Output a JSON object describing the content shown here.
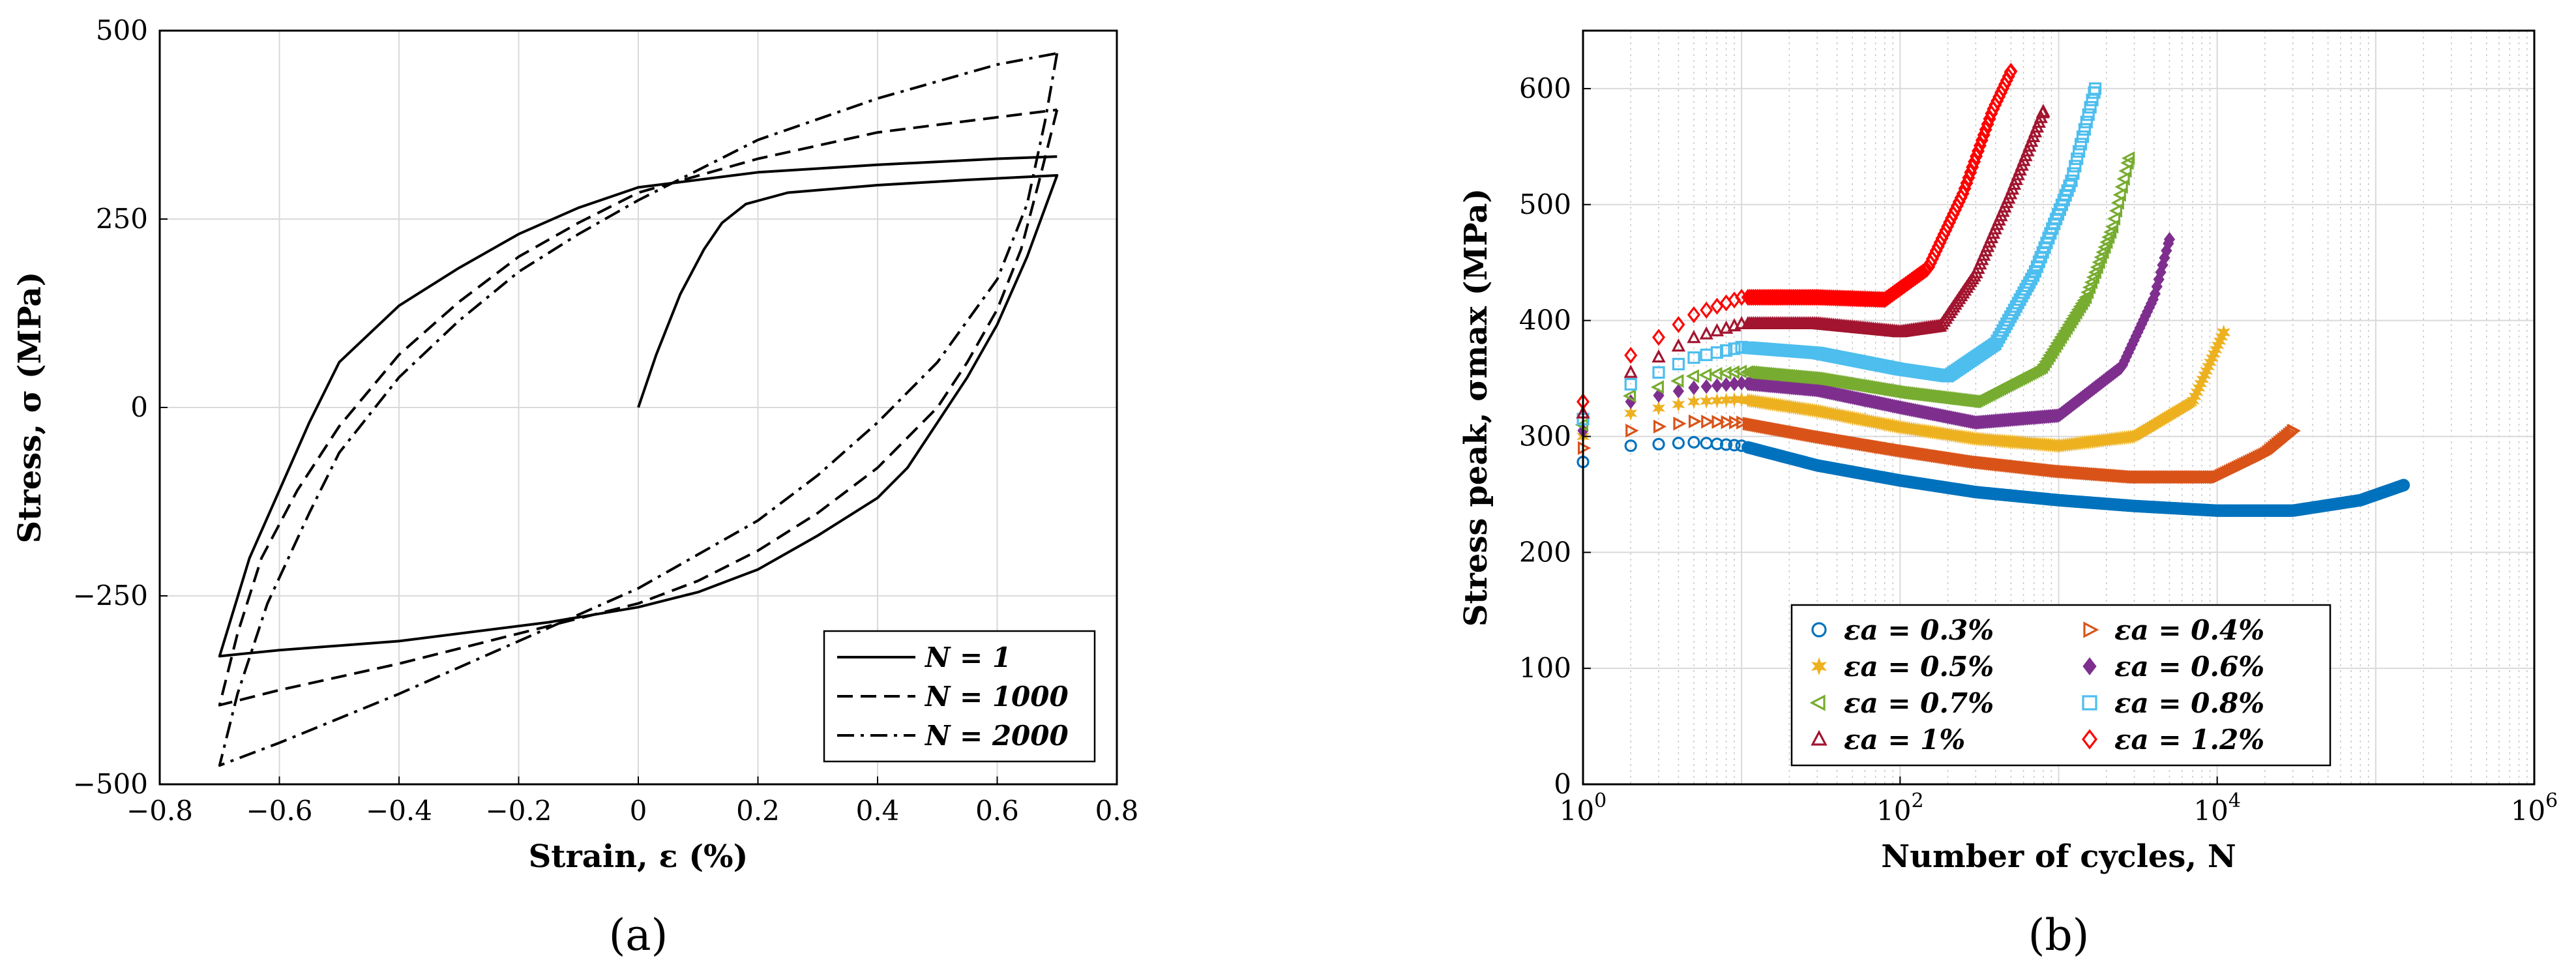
{
  "chart_data": [
    {
      "panel_label": "(a)",
      "type": "line",
      "xlabel": "Strain, ε (%)",
      "ylabel": "Stress, σ (MPa)",
      "xlim": [
        -0.8,
        0.8
      ],
      "ylim": [
        -500,
        500
      ],
      "xticks": [
        -0.8,
        -0.6,
        -0.4,
        -0.2,
        0,
        0.2,
        0.4,
        0.6,
        0.8
      ],
      "yticks": [
        -500,
        -250,
        0,
        250,
        500
      ],
      "x_tick_labels": [
        "−0.8",
        "−0.6",
        "−0.4",
        "−0.2",
        "0",
        "0.2",
        "0.4",
        "0.6",
        "0.8"
      ],
      "y_tick_labels": [
        "−500",
        "−250",
        "0",
        "250",
        "500"
      ],
      "grid": true,
      "legend_position": "bottom-right",
      "series": [
        {
          "name": "N = 1",
          "style": "solid",
          "points": [
            [
              0,
              0
            ],
            [
              0.03,
              70
            ],
            [
              0.07,
              150
            ],
            [
              0.11,
              210
            ],
            [
              0.14,
              245
            ],
            [
              0.18,
              270
            ],
            [
              0.25,
              285
            ],
            [
              0.4,
              295
            ],
            [
              0.55,
              302
            ],
            [
              0.7,
              308
            ],
            [
              0.65,
              200
            ],
            [
              0.6,
              110
            ],
            [
              0.55,
              40
            ],
            [
              0.5,
              -20
            ],
            [
              0.45,
              -80
            ],
            [
              0.4,
              -120
            ],
            [
              0.3,
              -170
            ],
            [
              0.2,
              -215
            ],
            [
              0.1,
              -245
            ],
            [
              0,
              -265
            ],
            [
              -0.15,
              -285
            ],
            [
              -0.4,
              -310
            ],
            [
              -0.6,
              -322
            ],
            [
              -0.7,
              -330
            ],
            [
              -0.65,
              -200
            ],
            [
              -0.6,
              -110
            ],
            [
              -0.55,
              -20
            ],
            [
              -0.5,
              60
            ],
            [
              -0.4,
              135
            ],
            [
              -0.3,
              185
            ],
            [
              -0.2,
              230
            ],
            [
              -0.1,
              265
            ],
            [
              0,
              292
            ],
            [
              0.2,
              312
            ],
            [
              0.4,
              322
            ],
            [
              0.6,
              330
            ],
            [
              0.7,
              333
            ]
          ]
        },
        {
          "name": "N = 1000",
          "style": "dashed",
          "points": [
            [
              0.7,
              395
            ],
            [
              0.67,
              300
            ],
            [
              0.64,
              210
            ],
            [
              0.6,
              130
            ],
            [
              0.55,
              60
            ],
            [
              0.5,
              0
            ],
            [
              0.4,
              -80
            ],
            [
              0.3,
              -140
            ],
            [
              0.2,
              -190
            ],
            [
              0.1,
              -230
            ],
            [
              0,
              -260
            ],
            [
              -0.2,
              -300
            ],
            [
              -0.4,
              -340
            ],
            [
              -0.6,
              -375
            ],
            [
              -0.7,
              -395
            ],
            [
              -0.67,
              -300
            ],
            [
              -0.63,
              -200
            ],
            [
              -0.57,
              -110
            ],
            [
              -0.5,
              -25
            ],
            [
              -0.4,
              70
            ],
            [
              -0.3,
              140
            ],
            [
              -0.2,
              200
            ],
            [
              -0.1,
              245
            ],
            [
              0,
              285
            ],
            [
              0.2,
              330
            ],
            [
              0.4,
              365
            ],
            [
              0.6,
              385
            ],
            [
              0.7,
              395
            ]
          ]
        },
        {
          "name": "N = 2000",
          "style": "dashdot",
          "points": [
            [
              0.7,
              470
            ],
            [
              0.68,
              380
            ],
            [
              0.65,
              270
            ],
            [
              0.6,
              170
            ],
            [
              0.5,
              60
            ],
            [
              0.4,
              -20
            ],
            [
              0.3,
              -90
            ],
            [
              0.2,
              -150
            ],
            [
              0.1,
              -195
            ],
            [
              0,
              -240
            ],
            [
              -0.2,
              -310
            ],
            [
              -0.4,
              -380
            ],
            [
              -0.6,
              -445
            ],
            [
              -0.7,
              -475
            ],
            [
              -0.67,
              -380
            ],
            [
              -0.62,
              -260
            ],
            [
              -0.55,
              -140
            ],
            [
              -0.5,
              -60
            ],
            [
              -0.4,
              40
            ],
            [
              -0.3,
              115
            ],
            [
              -0.2,
              180
            ],
            [
              -0.1,
              230
            ],
            [
              0,
              275
            ],
            [
              0.2,
              355
            ],
            [
              0.4,
              410
            ],
            [
              0.6,
              455
            ],
            [
              0.7,
              470
            ]
          ]
        }
      ]
    },
    {
      "panel_label": "(b)",
      "type": "scatter",
      "xlabel": "Number of cycles, N",
      "ylabel": "Stress peak, σmax (MPa)",
      "xscale": "log",
      "xlim": [
        1,
        1000000
      ],
      "ylim": [
        0,
        650
      ],
      "xticks": [
        1,
        100,
        10000,
        1000000
      ],
      "x_tick_labels": [
        {
          "base": "10",
          "exp": "0"
        },
        {
          "base": "10",
          "exp": "2"
        },
        {
          "base": "10",
          "exp": "4"
        },
        {
          "base": "10",
          "exp": "6"
        }
      ],
      "yticks": [
        0,
        100,
        200,
        300,
        400,
        500,
        600
      ],
      "y_tick_labels": [
        "0",
        "100",
        "200",
        "300",
        "400",
        "500",
        "600"
      ],
      "grid": true,
      "legend_position": "bottom-center",
      "series": [
        {
          "name": "εa = 0.3%",
          "marker": "circle",
          "color": "#0072BD",
          "Nf": 150000,
          "curve": [
            [
              1,
              278
            ],
            [
              2,
              292
            ],
            [
              5,
              295
            ],
            [
              10,
              292
            ],
            [
              30,
              275
            ],
            [
              100,
              262
            ],
            [
              300,
              252
            ],
            [
              1000,
              245
            ],
            [
              3000,
              240
            ],
            [
              10000,
              236
            ],
            [
              30000,
              236
            ],
            [
              80000,
              245
            ],
            [
              150000,
              258
            ]
          ]
        },
        {
          "name": "εa = 0.4%",
          "marker": "triangle-right",
          "color": "#D95319",
          "Nf": 30000,
          "curve": [
            [
              1,
              290
            ],
            [
              2,
              305
            ],
            [
              5,
              313
            ],
            [
              10,
              312
            ],
            [
              30,
              300
            ],
            [
              100,
              288
            ],
            [
              300,
              278
            ],
            [
              1000,
              270
            ],
            [
              3000,
              265
            ],
            [
              10000,
              265
            ],
            [
              20000,
              285
            ],
            [
              30000,
              305
            ]
          ]
        },
        {
          "name": "εa = 0.5%",
          "marker": "star",
          "color": "#EDB120",
          "Nf": 11000,
          "curve": [
            [
              1,
              300
            ],
            [
              2,
              320
            ],
            [
              5,
              330
            ],
            [
              10,
              332
            ],
            [
              30,
              322
            ],
            [
              100,
              308
            ],
            [
              300,
              298
            ],
            [
              1000,
              292
            ],
            [
              3000,
              300
            ],
            [
              7000,
              330
            ],
            [
              11000,
              390
            ]
          ]
        },
        {
          "name": "εa = 0.6%",
          "marker": "filled-diamond",
          "color": "#7E2F8E",
          "Nf": 5000,
          "curve": [
            [
              1,
              305
            ],
            [
              2,
              330
            ],
            [
              5,
              342
            ],
            [
              10,
              346
            ],
            [
              30,
              340
            ],
            [
              100,
              325
            ],
            [
              300,
              312
            ],
            [
              1000,
              318
            ],
            [
              2500,
              360
            ],
            [
              4000,
              420
            ],
            [
              5000,
              470
            ]
          ]
        },
        {
          "name": "εa = 0.7%",
          "marker": "triangle-left",
          "color": "#77AC30",
          "Nf": 2800,
          "curve": [
            [
              1,
              310
            ],
            [
              2,
              335
            ],
            [
              5,
              352
            ],
            [
              10,
              356
            ],
            [
              30,
              350
            ],
            [
              100,
              338
            ],
            [
              300,
              330
            ],
            [
              800,
              360
            ],
            [
              1500,
              420
            ],
            [
              2200,
              480
            ],
            [
              2800,
              540
            ]
          ]
        },
        {
          "name": "εa = 0.8%",
          "marker": "square",
          "color": "#4DBEEE",
          "Nf": 1700,
          "curve": [
            [
              1,
              315
            ],
            [
              2,
              345
            ],
            [
              5,
              368
            ],
            [
              10,
              377
            ],
            [
              30,
              372
            ],
            [
              100,
              358
            ],
            [
              200,
              352
            ],
            [
              400,
              380
            ],
            [
              700,
              440
            ],
            [
              1200,
              520
            ],
            [
              1700,
              600
            ]
          ]
        },
        {
          "name": "εa = 1%",
          "marker": "triangle-up",
          "color": "#A2142F",
          "Nf": 800,
          "curve": [
            [
              1,
              320
            ],
            [
              2,
              355
            ],
            [
              5,
              385
            ],
            [
              10,
              397
            ],
            [
              30,
              397
            ],
            [
              100,
              390
            ],
            [
              180,
              395
            ],
            [
              300,
              440
            ],
            [
              500,
              510
            ],
            [
              800,
              580
            ]
          ]
        },
        {
          "name": "εa = 1.2%",
          "marker": "diamond",
          "color": "#FF0000",
          "Nf": 500,
          "curve": [
            [
              1,
              330
            ],
            [
              2,
              370
            ],
            [
              5,
              405
            ],
            [
              10,
              420
            ],
            [
              30,
              420
            ],
            [
              80,
              418
            ],
            [
              150,
              445
            ],
            [
              250,
              510
            ],
            [
              380,
              580
            ],
            [
              500,
              615
            ]
          ]
        }
      ]
    }
  ]
}
